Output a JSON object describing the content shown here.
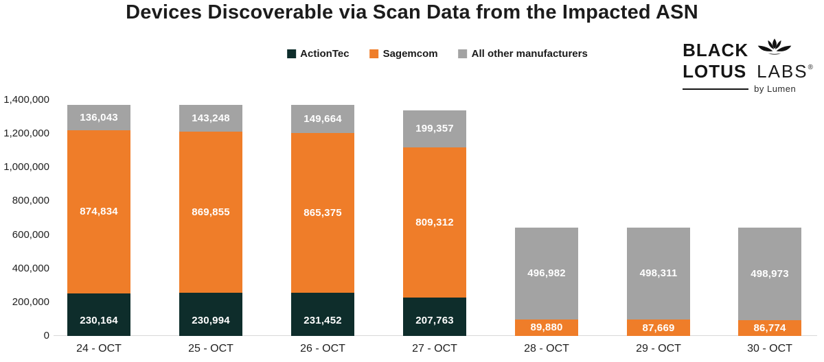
{
  "title": "Devices Discoverable via Scan Data from the Impacted ASN",
  "logo": {
    "black": "BLACK",
    "lotus": "LOTUS",
    "labs": "LABS",
    "reg": "®",
    "byline": "by Lumen"
  },
  "chart_data": {
    "type": "bar",
    "stacked": true,
    "title": "Devices Discoverable via Scan Data from the Impacted ASN",
    "categories": [
      "24 - OCT",
      "25 - OCT",
      "26 - OCT",
      "27 - OCT",
      "28 - OCT",
      "29 - OCT",
      "30 - OCT"
    ],
    "series": [
      {
        "name": "ActionTec",
        "color": "#0E2D2B",
        "values": [
          230164,
          230994,
          231452,
          207763,
          null,
          null,
          null
        ]
      },
      {
        "name": "Sagemcom",
        "color": "#EF7D29",
        "values": [
          874834,
          869855,
          865375,
          809312,
          89880,
          87669,
          86774
        ]
      },
      {
        "name": "All other manufacturers",
        "color": "#A3A3A3",
        "values": [
          136043,
          143248,
          149664,
          199357,
          496982,
          498311,
          498973
        ]
      }
    ],
    "xlabel": "",
    "ylabel": "",
    "ylim": [
      0,
      1400000
    ],
    "yticks": [
      0,
      200000,
      400000,
      600000,
      800000,
      1000000,
      1200000,
      1400000
    ],
    "grid": false,
    "legend_position": "top",
    "data_labels": true,
    "bar_top_axis_estimates": [
      1370000,
      1370000,
      1370000,
      1340000,
      645000,
      645000,
      645000
    ]
  }
}
